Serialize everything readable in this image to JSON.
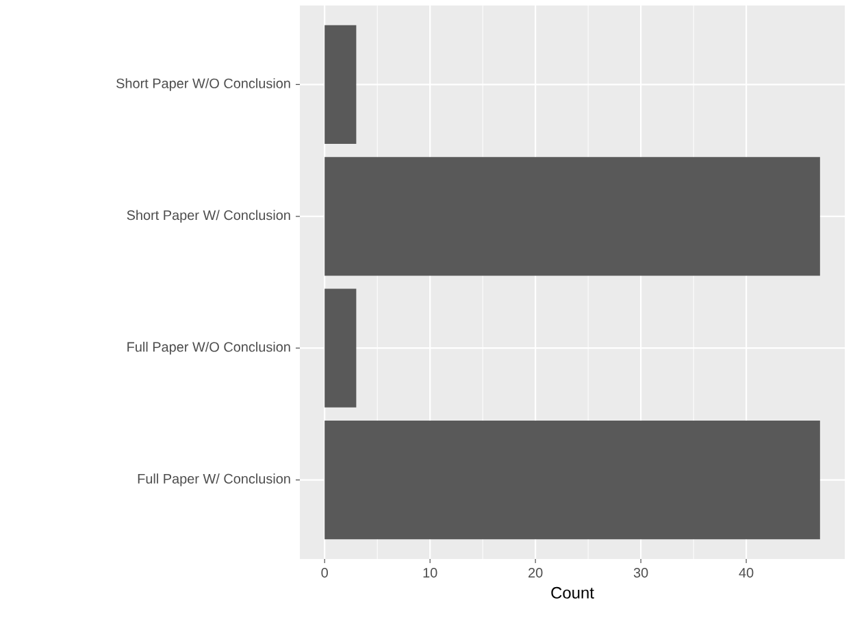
{
  "chart_data": {
    "type": "bar",
    "orientation": "horizontal",
    "categories": [
      "Short Paper W/O Conclusion",
      "Short Paper W/ Conclusion",
      "Full Paper W/O Conclusion",
      "Full Paper W/ Conclusion"
    ],
    "values": [
      3,
      47,
      3,
      47
    ],
    "color": "#595959",
    "xlabel": "Count",
    "xlim": [
      -2.35,
      49.35
    ],
    "xticks": [
      0,
      10,
      20,
      30,
      40
    ],
    "grid": true
  }
}
